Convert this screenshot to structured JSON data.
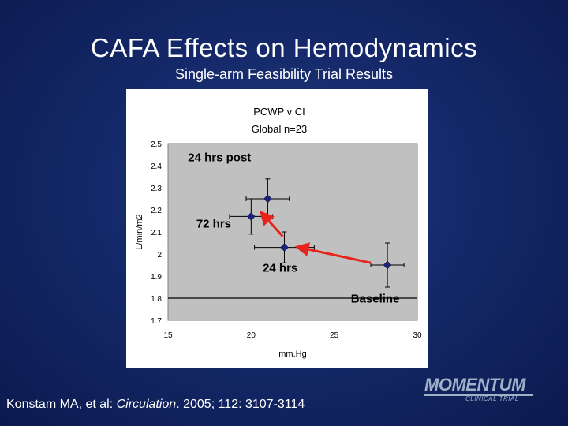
{
  "slide": {
    "title": "CAFA Effects on Hemodynamics",
    "subtitle": "Single-arm Feasibility Trial Results",
    "citation_prefix": "Konstam MA, et al: ",
    "citation_journal": "Circulation",
    "citation_suffix": ". 2005; 112: 3107-3114",
    "logo_main": "MOMENTUM",
    "logo_sub": "CLINICAL TRIAL"
  },
  "colors": {
    "plot_bg": "#c0c0c0",
    "marker": "#1a237e",
    "arrow": "#e8231b",
    "error_bar": "#000000"
  },
  "chart_data": {
    "type": "scatter",
    "title": "PCWP v CI",
    "subtitle": "Global n=23",
    "xlabel": "mm.Hg",
    "ylabel": "L/min/m2",
    "xlim": [
      15,
      30
    ],
    "ylim": [
      1.7,
      2.5
    ],
    "xticks": [
      15,
      20,
      25,
      30
    ],
    "yticks": [
      1.7,
      1.8,
      1.9,
      2,
      2.1,
      2.2,
      2.3,
      2.4,
      2.5
    ],
    "ytick_labels": [
      "1.7",
      "1.8",
      "1.9",
      "2",
      "2.1",
      "2.2",
      "2.3",
      "2.4",
      "2.5"
    ],
    "reference_line_y": 1.8,
    "points": [
      {
        "name": "24 hrs post",
        "x": 21.0,
        "y": 2.25,
        "x_err": 1.3,
        "y_err": 0.09
      },
      {
        "name": "72 hrs",
        "x": 20.0,
        "y": 2.17,
        "x_err": 1.3,
        "y_err": 0.08
      },
      {
        "name": "24 hrs",
        "x": 22.0,
        "y": 2.03,
        "x_err": 1.8,
        "y_err": 0.07
      },
      {
        "name": "Baseline",
        "x": 28.2,
        "y": 1.95,
        "x_err": 1.0,
        "y_err": 0.1
      }
    ],
    "annotations": [
      {
        "text": "24 hrs post",
        "x": 16.2,
        "y": 2.42
      },
      {
        "text": "72 hrs",
        "x": 16.7,
        "y": 2.12
      },
      {
        "text": "24 hrs",
        "x": 20.7,
        "y": 1.92
      },
      {
        "text": "Baseline",
        "x": 26.0,
        "y": 1.78
      }
    ],
    "arrows": [
      {
        "from": [
          27.2,
          1.96
        ],
        "to": [
          22.9,
          2.03
        ]
      },
      {
        "from": [
          21.9,
          2.08
        ],
        "to": [
          20.7,
          2.18
        ]
      }
    ]
  }
}
